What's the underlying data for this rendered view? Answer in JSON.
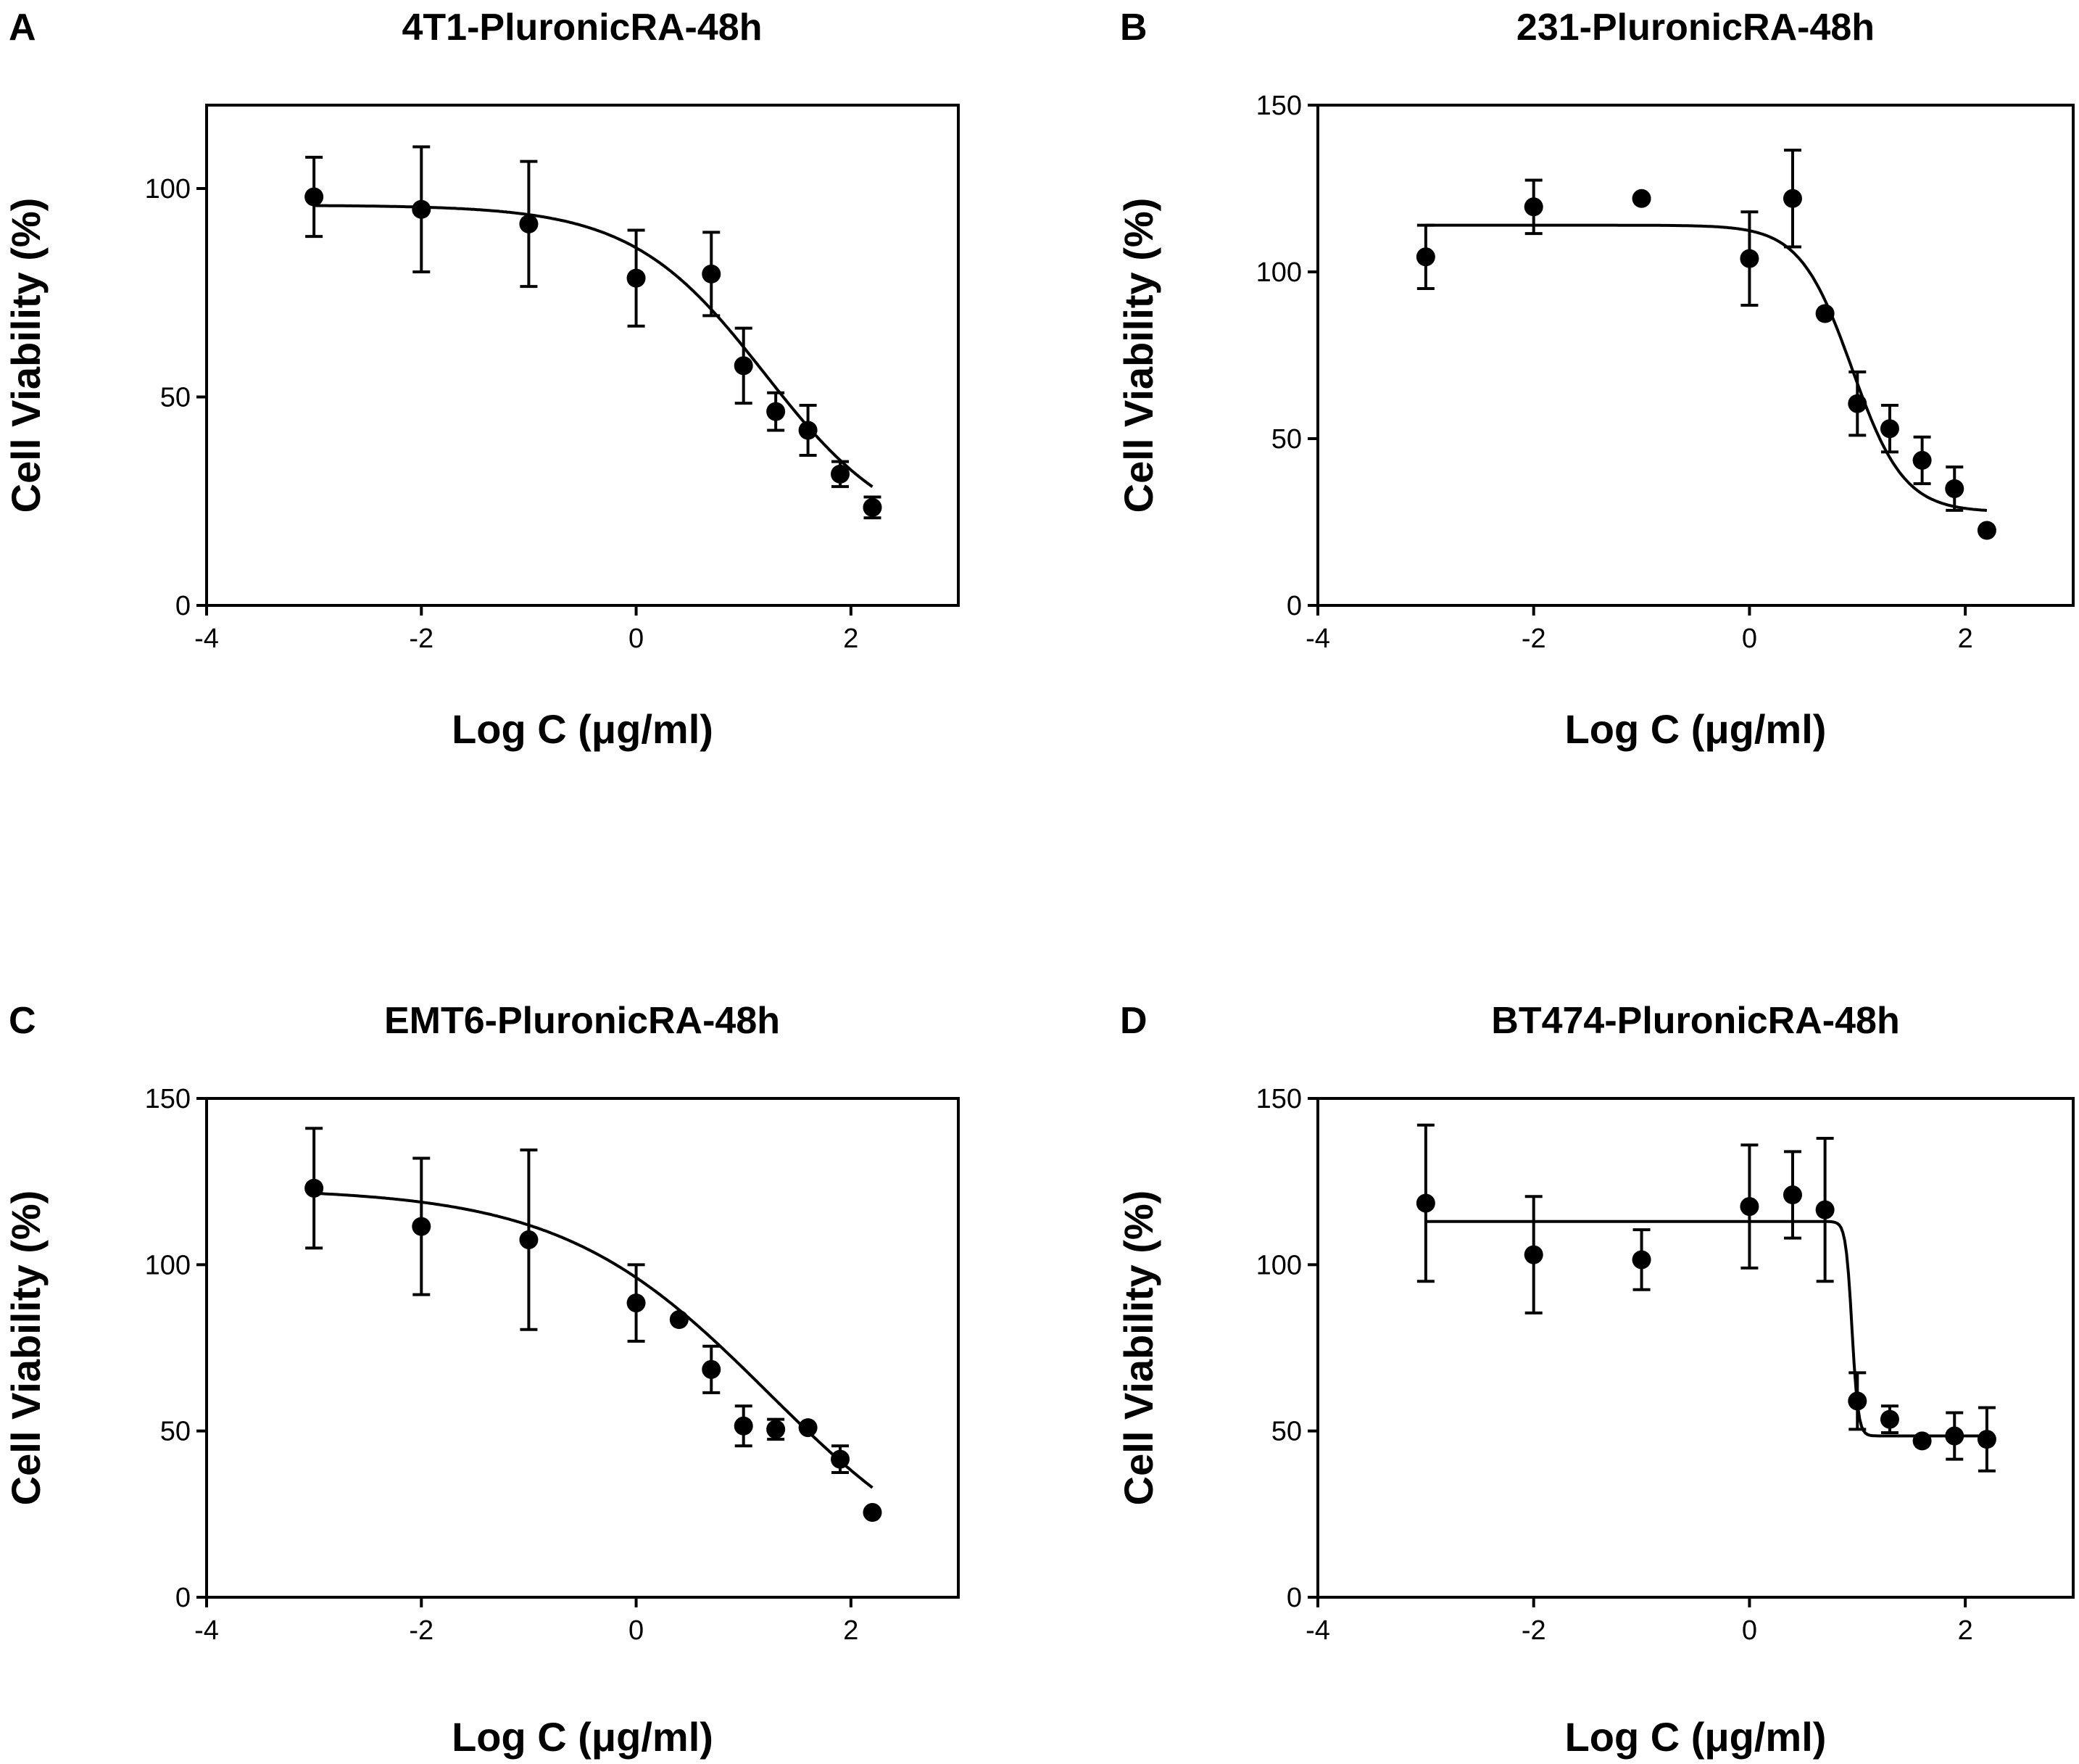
{
  "chart_data": [
    {
      "panel": "A",
      "type": "scatter",
      "title": "4T1-PluronicRA-48h",
      "xlabel": "Log C (μg/ml)",
      "ylabel": "Cell Viability (%)",
      "xlim": [
        -4,
        3
      ],
      "ylim": [
        0,
        120
      ],
      "xticks": [
        -4,
        -2,
        0,
        2
      ],
      "yticks": [
        0,
        50,
        100
      ],
      "points": [
        {
          "x": -3.0,
          "y": 98,
          "err": 9.5
        },
        {
          "x": -2.0,
          "y": 95,
          "err": 15
        },
        {
          "x": -1.0,
          "y": 91.5,
          "err": 15
        },
        {
          "x": 0.0,
          "y": 78.5,
          "err": 11.5
        },
        {
          "x": 0.7,
          "y": 79.5,
          "err": 10
        },
        {
          "x": 1.0,
          "y": 57.5,
          "err": 9
        },
        {
          "x": 1.3,
          "y": 46.5,
          "err": 4.5
        },
        {
          "x": 1.6,
          "y": 42,
          "err": 6
        },
        {
          "x": 1.9,
          "y": 31.5,
          "err": 3
        },
        {
          "x": 2.2,
          "y": 23.5,
          "err": 2.5
        }
      ],
      "fit": {
        "top": 96,
        "bottom": 15,
        "logIC50": 1.2,
        "hill": -0.7,
        "x_range": [
          -3,
          2.2
        ]
      }
    },
    {
      "panel": "B",
      "type": "scatter",
      "title": "231-PluronicRA-48h",
      "xlabel": "Log C (μg/ml)",
      "ylabel": "Cell Viability (%)",
      "xlim": [
        -4,
        3
      ],
      "ylim": [
        0,
        150
      ],
      "xticks": [
        -4,
        -2,
        0,
        2
      ],
      "yticks": [
        0,
        50,
        100,
        150
      ],
      "points": [
        {
          "x": -3.0,
          "y": 104.5,
          "err": 9.5
        },
        {
          "x": -2.0,
          "y": 119.5,
          "err": 8
        },
        {
          "x": -1.0,
          "y": 122,
          "err": 0
        },
        {
          "x": 0.0,
          "y": 104,
          "err": 14
        },
        {
          "x": 0.4,
          "y": 122,
          "err": 14.5
        },
        {
          "x": 0.7,
          "y": 87.5,
          "err": 0
        },
        {
          "x": 1.0,
          "y": 60.5,
          "err": 9.5
        },
        {
          "x": 1.3,
          "y": 53,
          "err": 7
        },
        {
          "x": 1.6,
          "y": 43.5,
          "err": 7
        },
        {
          "x": 1.9,
          "y": 35,
          "err": 6.5
        },
        {
          "x": 2.2,
          "y": 22.5,
          "err": 0
        }
      ],
      "fit": {
        "top": 114,
        "bottom": 28,
        "logIC50": 0.95,
        "hill": -1.8,
        "x_range": [
          -3,
          2.2
        ]
      }
    },
    {
      "panel": "C",
      "type": "scatter",
      "title": "EMT6-PluronicRA-48h",
      "xlabel": "Log C (μg/ml)",
      "ylabel": "Cell Viability (%)",
      "xlim": [
        -4,
        3
      ],
      "ylim": [
        0,
        150
      ],
      "xticks": [
        -4,
        -2,
        0,
        2
      ],
      "yticks": [
        0,
        50,
        100,
        150
      ],
      "points": [
        {
          "x": -3.0,
          "y": 123,
          "err": 18
        },
        {
          "x": -2.0,
          "y": 111.5,
          "err": 20.5
        },
        {
          "x": -1.0,
          "y": 107.5,
          "err": 27
        },
        {
          "x": 0.0,
          "y": 88.5,
          "err": 11.5
        },
        {
          "x": 0.4,
          "y": 83.5,
          "err": 0
        },
        {
          "x": 0.7,
          "y": 68.5,
          "err": 7
        },
        {
          "x": 1.0,
          "y": 51.5,
          "err": 6
        },
        {
          "x": 1.3,
          "y": 50.5,
          "err": 3
        },
        {
          "x": 1.6,
          "y": 51,
          "err": 0
        },
        {
          "x": 1.9,
          "y": 41.5,
          "err": 4
        },
        {
          "x": 2.2,
          "y": 25.5,
          "err": 0
        }
      ],
      "fit": {
        "top": 123,
        "bottom": 0,
        "logIC50": 1.23,
        "hill": -0.45,
        "x_range": [
          -3,
          2.2
        ]
      }
    },
    {
      "panel": "D",
      "type": "scatter",
      "title": "BT474-PluronicRA-48h",
      "xlabel": "Log C (μg/ml)",
      "ylabel": "Cell Viability (%)",
      "xlim": [
        -4,
        3
      ],
      "ylim": [
        0,
        150
      ],
      "xticks": [
        -4,
        -2,
        0,
        2
      ],
      "yticks": [
        0,
        50,
        100,
        150
      ],
      "points": [
        {
          "x": -3.0,
          "y": 118.5,
          "err": 23.5
        },
        {
          "x": -2.0,
          "y": 103,
          "err": 17.5
        },
        {
          "x": -1.0,
          "y": 101.5,
          "err": 9
        },
        {
          "x": 0.0,
          "y": 117.5,
          "err": 18.5
        },
        {
          "x": 0.4,
          "y": 121,
          "err": 13
        },
        {
          "x": 0.7,
          "y": 116.5,
          "err": 21.5
        },
        {
          "x": 1.0,
          "y": 59,
          "err": 8.5
        },
        {
          "x": 1.3,
          "y": 53.5,
          "err": 4
        },
        {
          "x": 1.6,
          "y": 47,
          "err": 0
        },
        {
          "x": 1.9,
          "y": 48.5,
          "err": 7
        },
        {
          "x": 2.2,
          "y": 47.5,
          "err": 9.5
        }
      ],
      "fit": {
        "top": 113,
        "bottom": 48.5,
        "logIC50": 0.95,
        "hill": -15,
        "x_range": [
          -3,
          2.2
        ]
      }
    }
  ]
}
